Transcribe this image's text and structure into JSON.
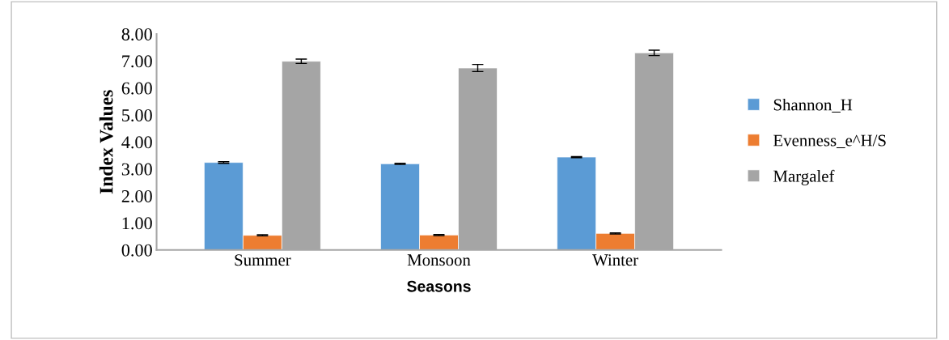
{
  "chart_data": {
    "type": "bar",
    "xlabel": "Seasons",
    "ylabel": "Index Values",
    "categories": [
      "Summer",
      "Monsoon",
      "Winter"
    ],
    "series": [
      {
        "name": "Shannon_H",
        "color": "#5b9bd5",
        "values": [
          3.24,
          3.19,
          3.44
        ],
        "errors": [
          0.03,
          0.02,
          0.02
        ]
      },
      {
        "name": "Evenness_e^H/S",
        "color": "#ed7d31",
        "values": [
          0.54,
          0.55,
          0.61
        ],
        "errors": [
          0.02,
          0.02,
          0.02
        ]
      },
      {
        "name": "Margalef",
        "color": "#a5a5a5",
        "values": [
          6.99,
          6.74,
          7.3
        ],
        "errors": [
          0.08,
          0.13,
          0.1
        ]
      }
    ],
    "ylim": [
      0,
      8
    ],
    "yticks": [
      {
        "value": 0,
        "label": "0.00"
      },
      {
        "value": 1,
        "label": "1.00"
      },
      {
        "value": 2,
        "label": "2.00"
      },
      {
        "value": 3,
        "label": "3.00"
      },
      {
        "value": 4,
        "label": "4.00"
      },
      {
        "value": 5,
        "label": "5.00"
      },
      {
        "value": 6,
        "label": "6.00"
      },
      {
        "value": 7,
        "label": "7.00"
      },
      {
        "value": 8,
        "label": "8.00"
      }
    ],
    "grid": false,
    "legend": "right"
  }
}
